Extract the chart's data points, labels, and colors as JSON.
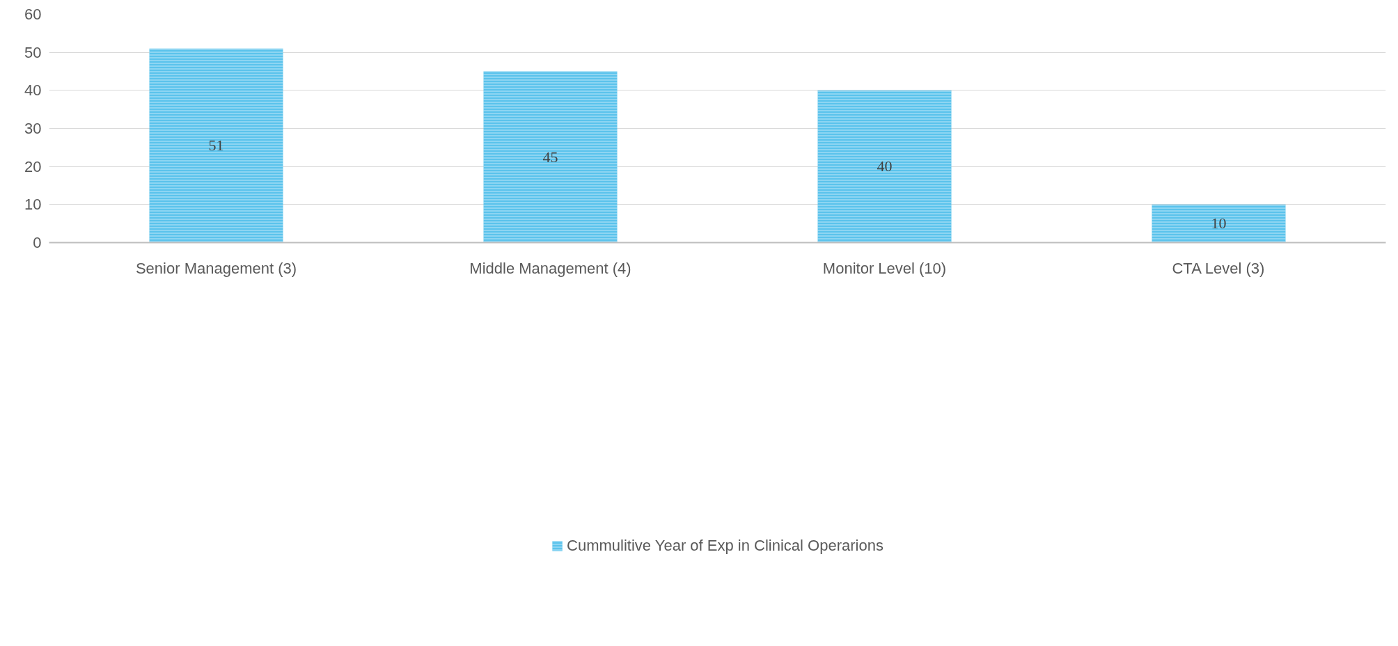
{
  "chart_data": {
    "type": "bar",
    "categories": [
      "Senior Management (3)",
      "Middle Management (4)",
      "Monitor Level (10)",
      "CTA Level (3)"
    ],
    "series": [
      {
        "name": "Cummulitive Year of Exp in Clinical Operarions",
        "color": "#5bc3ec",
        "values": [
          51,
          45,
          40,
          10
        ]
      }
    ],
    "ylim": [
      0,
      60
    ],
    "yticks": [
      0,
      10,
      20,
      30,
      40,
      50,
      60
    ],
    "grid": "y",
    "legend": "bottom",
    "data_labels": true
  }
}
